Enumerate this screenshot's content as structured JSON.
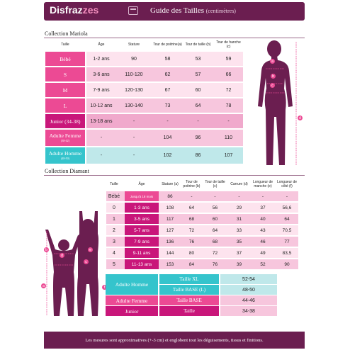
{
  "header": {
    "brand_a": "Disfraz",
    "brand_b": "zes",
    "title": "Guide des Tailles",
    "subtitle": "(centimètres)"
  },
  "mariola": {
    "section_title": "Collection Mariola",
    "columns": [
      "Taille",
      "Âge",
      "Stature",
      "Tour de poitrine(a)",
      "Tour de taille (b)",
      "Tour de hanche (c)"
    ],
    "rows": [
      {
        "label": "Bébé",
        "sub": "",
        "age": "1-2 ans",
        "stature": "90",
        "a": "58",
        "b": "53",
        "c": "59"
      },
      {
        "label": "S",
        "sub": "",
        "age": "3-6 ans",
        "stature": "110-120",
        "a": "62",
        "b": "57",
        "c": "66"
      },
      {
        "label": "M",
        "sub": "",
        "age": "7-9 ans",
        "stature": "120-130",
        "a": "67",
        "b": "60",
        "c": "72"
      },
      {
        "label": "L",
        "sub": "",
        "age": "10-12 ans",
        "stature": "130-140",
        "a": "73",
        "b": "64",
        "c": "78"
      },
      {
        "label": "Junior (34-38)",
        "sub": "",
        "age": "13-18 ans",
        "stature": "-",
        "a": "-",
        "b": "-",
        "c": "-"
      },
      {
        "label": "Adulte Femme",
        "sub": "(38-42)",
        "age": "-",
        "stature": "-",
        "a": "104",
        "b": "96",
        "c": "110"
      },
      {
        "label": "Adulte Homme",
        "sub": "(48-50)",
        "age": "-",
        "stature": "-",
        "a": "102",
        "b": "86",
        "c": "107"
      }
    ]
  },
  "diamant": {
    "section_title": "Collection Diamant",
    "columns": [
      "Taille",
      "Âge",
      "Stature (a)",
      "Tour de poitrine (b)",
      "Tour de taille (c)",
      "Carrure (d)",
      "Longueur de manche (e)",
      "Longueur de côté (f)"
    ],
    "rows": [
      {
        "taille": "Bébé",
        "age": "Jusqu'à 18 mois",
        "stature": "86",
        "b": "-",
        "c": "-",
        "d": "-",
        "e": "-",
        "f": "-"
      },
      {
        "taille": "0",
        "age": "1-3 ans",
        "stature": "108",
        "b": "64",
        "c": "56",
        "d": "29",
        "e": "37",
        "f": "56,6"
      },
      {
        "taille": "1",
        "age": "3-5 ans",
        "stature": "117",
        "b": "68",
        "c": "60",
        "d": "31",
        "e": "40",
        "f": "64"
      },
      {
        "taille": "2",
        "age": "5-7 ans",
        "stature": "127",
        "b": "72",
        "c": "64",
        "d": "33",
        "e": "43",
        "f": "70,5"
      },
      {
        "taille": "3",
        "age": "7-9 ans",
        "stature": "136",
        "b": "76",
        "c": "68",
        "d": "35",
        "e": "46",
        "f": "77"
      },
      {
        "taille": "4",
        "age": "9-11 ans",
        "stature": "144",
        "b": "80",
        "c": "72",
        "d": "37",
        "e": "49",
        "f": "83,5"
      },
      {
        "taille": "5",
        "age": "11-13 ans",
        "stature": "153",
        "b": "84",
        "c": "76",
        "d": "39",
        "e": "52",
        "f": "90"
      }
    ],
    "adult": {
      "homme_label": "Adulte Homme",
      "femme_label": "Adulte Femme",
      "junior_label": "Junior",
      "taille_xl": "Taille XL",
      "taille_xl_val": "52-54",
      "taille_base_l": "Taille BASE (L)",
      "taille_base_l_val": "48-50",
      "taille_base": "Taille BASE",
      "taille_base_val": "44-46",
      "taille": "Taille",
      "taille_val": "34-38"
    }
  },
  "figure_tags": {
    "a": "a",
    "b": "b",
    "c": "c",
    "d": "d",
    "e": "e",
    "f": "f"
  },
  "footer": {
    "text": "Les mesures sont approximatives (+-3 cm) et englobent tout les déguisements, tissus et finitions."
  },
  "colors": {
    "header": "#6b1e50",
    "pink": "#ec4a94",
    "light_pink": "#f7c6dd",
    "teal": "#35c4cc",
    "light_teal": "#bfe8ea",
    "magenta": "#c9167a",
    "silhouette": "#6b1e50"
  }
}
